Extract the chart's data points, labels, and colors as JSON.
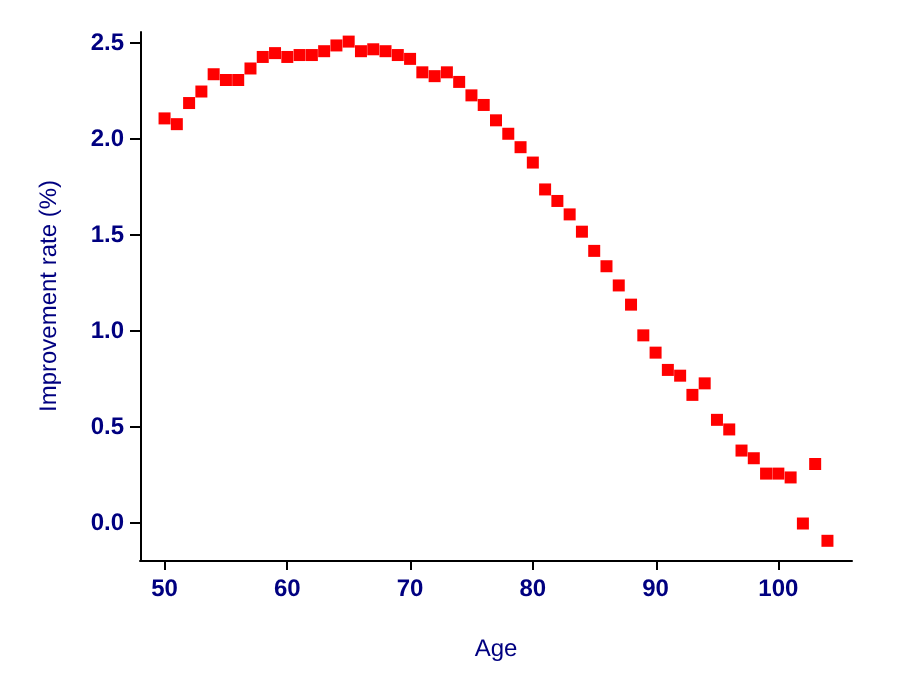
{
  "chart_data": {
    "type": "scatter",
    "xlabel": "Age",
    "ylabel": "Improvement rate (%)",
    "x": [
      50,
      51,
      52,
      53,
      54,
      55,
      56,
      57,
      58,
      59,
      60,
      61,
      62,
      63,
      64,
      65,
      66,
      67,
      68,
      69,
      70,
      71,
      72,
      73,
      74,
      75,
      76,
      77,
      78,
      79,
      80,
      81,
      82,
      83,
      84,
      85,
      86,
      87,
      88,
      89,
      90,
      91,
      92,
      93,
      94,
      95,
      96,
      97,
      98,
      99,
      100,
      101,
      102,
      103,
      104
    ],
    "series": [
      {
        "color": "#ff0000",
        "values": [
          2.1,
          2.07,
          2.18,
          2.24,
          2.33,
          2.3,
          2.3,
          2.36,
          2.42,
          2.44,
          2.42,
          2.43,
          2.43,
          2.45,
          2.48,
          2.5,
          2.45,
          2.46,
          2.45,
          2.43,
          2.41,
          2.34,
          2.32,
          2.34,
          2.29,
          2.22,
          2.17,
          2.09,
          2.02,
          1.95,
          1.87,
          1.73,
          1.67,
          1.6,
          1.51,
          1.41,
          1.33,
          1.23,
          1.13,
          0.97,
          0.88,
          0.79,
          0.76,
          0.66,
          0.72,
          0.53,
          0.48,
          0.37,
          0.33,
          0.25,
          0.25,
          0.23,
          -0.01,
          0.3,
          -0.1
        ]
      }
    ],
    "xlim": [
      48,
      106
    ],
    "xticks": [
      50,
      60,
      70,
      80,
      90,
      100
    ],
    "ylim": [
      -0.2,
      2.55
    ],
    "yticks": [
      {
        "value": 0,
        "label": "0.0"
      },
      {
        "value": 0.5,
        "label": "0.5"
      },
      {
        "value": 1,
        "label": "1.0"
      },
      {
        "value": 1.5,
        "label": "1.5"
      },
      {
        "value": 2,
        "label": "2.0"
      },
      {
        "value": 2.5,
        "label": "2.5"
      }
    ],
    "marker": "square",
    "grid": false
  }
}
